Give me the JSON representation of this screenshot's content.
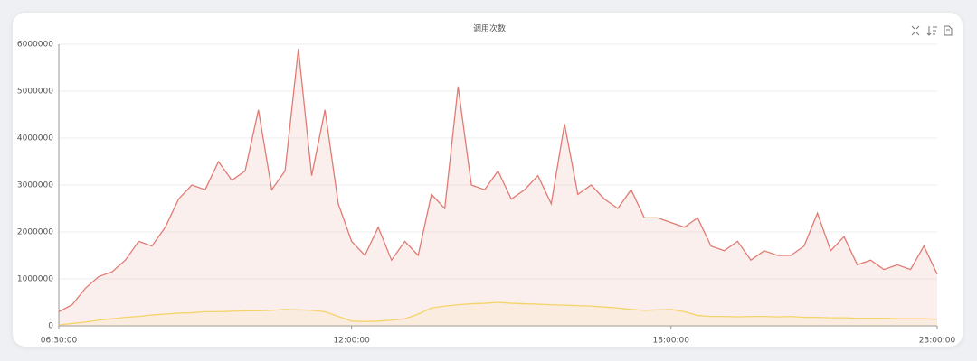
{
  "chart_data": {
    "type": "line",
    "title": "调用次数",
    "area": true,
    "grid": true,
    "x": [
      6.5,
      6.75,
      7,
      7.25,
      7.5,
      7.75,
      8,
      8.25,
      8.5,
      8.75,
      9,
      9.25,
      9.5,
      9.75,
      10,
      10.25,
      10.5,
      10.75,
      11,
      11.25,
      11.5,
      11.75,
      12,
      12.25,
      12.5,
      12.75,
      13,
      13.25,
      13.5,
      13.75,
      14,
      14.25,
      14.5,
      14.75,
      15,
      15.25,
      15.5,
      15.75,
      16,
      16.25,
      16.5,
      16.75,
      17,
      17.25,
      17.5,
      17.75,
      18,
      18.25,
      18.5,
      18.75,
      19,
      19.25,
      19.5,
      19.75,
      20,
      20.25,
      20.5,
      20.75,
      21,
      21.25,
      21.5,
      21.75,
      22,
      22.25,
      22.5,
      22.75,
      23
    ],
    "series": [
      {
        "color": "#e07b73",
        "values": [
          300000,
          450000,
          800000,
          1050000,
          1150000,
          1400000,
          1800000,
          1700000,
          2100000,
          2700000,
          3000000,
          2900000,
          3500000,
          3100000,
          3300000,
          4600000,
          2900000,
          3300000,
          5900000,
          3200000,
          4600000,
          2600000,
          1800000,
          1500000,
          2100000,
          1400000,
          1800000,
          1500000,
          2800000,
          2500000,
          5100000,
          3000000,
          2900000,
          3300000,
          2700000,
          2900000,
          3200000,
          2600000,
          4300000,
          2800000,
          3000000,
          2700000,
          2500000,
          2900000,
          2300000,
          2300000,
          2200000,
          2100000,
          2300000,
          1700000,
          1600000,
          1800000,
          1400000,
          1600000,
          1500000,
          1500000,
          1700000,
          2400000,
          1600000,
          1900000,
          1300000,
          1400000,
          1200000,
          1300000,
          1200000,
          1700000,
          1100000
        ]
      },
      {
        "color": "#f5d36a",
        "values": [
          20000,
          50000,
          80000,
          120000,
          150000,
          180000,
          200000,
          230000,
          250000,
          270000,
          280000,
          300000,
          300000,
          310000,
          320000,
          320000,
          330000,
          350000,
          340000,
          330000,
          300000,
          200000,
          100000,
          90000,
          100000,
          120000,
          150000,
          250000,
          380000,
          420000,
          450000,
          470000,
          480000,
          500000,
          480000,
          470000,
          460000,
          450000,
          440000,
          430000,
          420000,
          400000,
          380000,
          350000,
          330000,
          340000,
          350000,
          300000,
          220000,
          200000,
          200000,
          190000,
          200000,
          200000,
          190000,
          200000,
          180000,
          180000,
          170000,
          170000,
          160000,
          160000,
          160000,
          150000,
          150000,
          150000,
          140000
        ]
      }
    ],
    "xlim": [
      6.5,
      23
    ],
    "xticks": [
      {
        "value": 6.5,
        "label": "06:30:00"
      },
      {
        "value": 12,
        "label": "12:00:00"
      },
      {
        "value": 18,
        "label": "18:00:00"
      },
      {
        "value": 23,
        "label": "23:00:00"
      }
    ],
    "ylim": [
      0,
      6000000
    ],
    "yticks": [
      0,
      1000000,
      2000000,
      3000000,
      4000000,
      5000000,
      6000000
    ]
  }
}
